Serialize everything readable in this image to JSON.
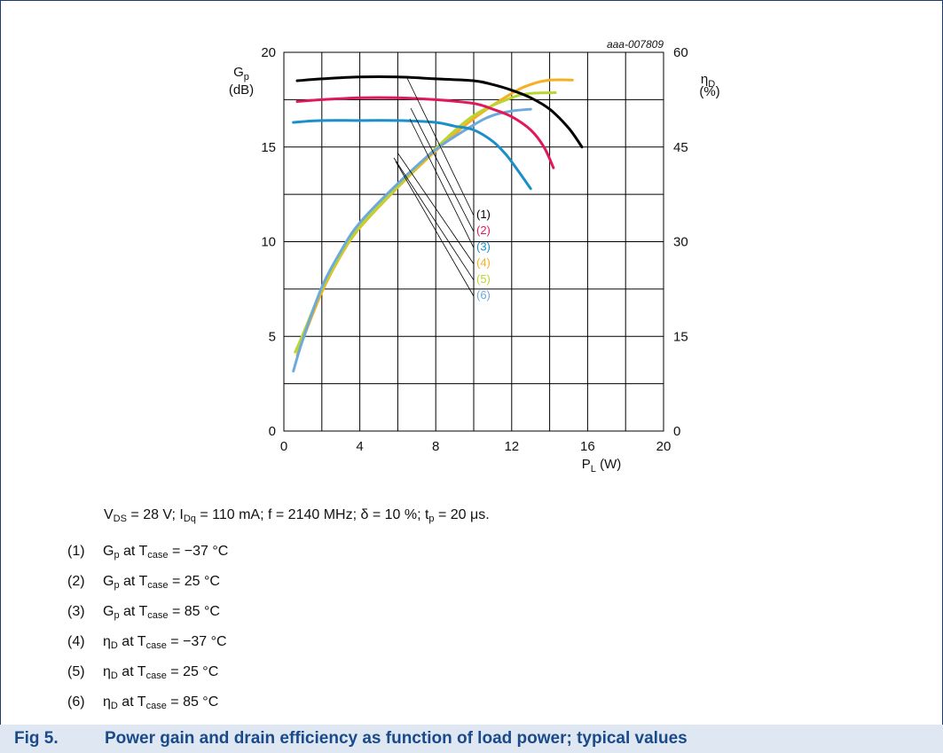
{
  "chart_data": {
    "type": "line",
    "code": "aaa-007809",
    "x_axis": {
      "label_main": "P",
      "label_sub": "L",
      "label_unit": " (W)",
      "range": [
        0,
        20
      ],
      "ticks": [
        "0",
        "4",
        "8",
        "12",
        "16",
        "20"
      ]
    },
    "y_left": {
      "label_main": "G",
      "label_sub": "p",
      "unit": "(dB)",
      "range": [
        0,
        20
      ],
      "ticks": [
        "0",
        "5",
        "10",
        "15",
        "20"
      ]
    },
    "y_right": {
      "label_main": "η",
      "label_sub": "D",
      "unit": "(%)",
      "range": [
        0,
        60
      ],
      "ticks": [
        "0",
        "15",
        "30",
        "45",
        "60"
      ]
    },
    "grid": true,
    "series": [
      {
        "name": "(1)",
        "axis": "left",
        "color": "#000000",
        "x": [
          0.7,
          2,
          4,
          6,
          8,
          10,
          11,
          12,
          13,
          14,
          15,
          15.7
        ],
        "y": [
          18.5,
          18.6,
          18.7,
          18.7,
          18.6,
          18.5,
          18.3,
          18.0,
          17.6,
          17.0,
          16.0,
          15.0
        ]
      },
      {
        "name": "(2)",
        "axis": "left",
        "color": "#e0195a",
        "x": [
          0.7,
          2,
          4,
          6,
          8,
          10,
          11,
          12,
          13,
          13.7,
          14.2
        ],
        "y": [
          17.4,
          17.5,
          17.6,
          17.6,
          17.5,
          17.3,
          17.0,
          16.6,
          15.9,
          15.0,
          13.9
        ]
      },
      {
        "name": "(3)",
        "axis": "left",
        "color": "#1a8fc9",
        "x": [
          0.5,
          2,
          4,
          6,
          8,
          9,
          10,
          11,
          11.7,
          12.3,
          13.0
        ],
        "y": [
          16.3,
          16.4,
          16.4,
          16.4,
          16.3,
          16.1,
          15.9,
          15.3,
          14.6,
          13.8,
          12.8
        ]
      },
      {
        "name": "(4)",
        "axis": "right",
        "color": "#f5b021",
        "x": [
          0.7,
          1,
          2,
          3,
          4,
          6,
          8,
          10,
          12,
          13,
          14,
          15.2
        ],
        "y": [
          12,
          14.5,
          22,
          27.8,
          32.2,
          38.6,
          44.4,
          49.5,
          53.5,
          54.9,
          55.6,
          55.6
        ]
      },
      {
        "name": "(5)",
        "axis": "right",
        "color": "#b9d532",
        "x": [
          0.6,
          1,
          2,
          3,
          4,
          6,
          8,
          10,
          12,
          13,
          14.3
        ],
        "y": [
          12.5,
          15.3,
          22.5,
          28,
          32.4,
          38.8,
          44.8,
          50,
          52.8,
          53.5,
          53.6
        ]
      },
      {
        "name": "(6)",
        "axis": "right",
        "color": "#6da9db",
        "x": [
          0.5,
          1,
          2,
          3,
          4,
          6,
          8,
          10,
          11,
          12,
          13
        ],
        "y": [
          9.5,
          14.5,
          22.8,
          28.5,
          33,
          39.2,
          44.6,
          48.5,
          50,
          50.7,
          51
        ]
      }
    ]
  },
  "conditions": [
    {
      "t": "V"
    },
    {
      "t": "DS",
      "sub": true
    },
    {
      "t": " = 28 V; I"
    },
    {
      "t": "Dq",
      "sub": true
    },
    {
      "t": " = 110 mA; f = 2140 MHz; δ = 10 %; t"
    },
    {
      "t": "p",
      "sub": true
    },
    {
      "t": " = 20 μs."
    }
  ],
  "legend": [
    {
      "num": "(1)",
      "sym": "G",
      "symsub": "p",
      "at": " at T",
      "tsub": "case",
      "val": " = −37 °C"
    },
    {
      "num": "(2)",
      "sym": "G",
      "symsub": "p",
      "at": " at T",
      "tsub": "case",
      "val": " = 25 °C"
    },
    {
      "num": "(3)",
      "sym": "G",
      "symsub": "p",
      "at": " at T",
      "tsub": "case",
      "val": " = 85 °C"
    },
    {
      "num": "(4)",
      "sym": "η",
      "symsub": "D",
      "at": " at T",
      "tsub": "case",
      "val": " = −37 °C"
    },
    {
      "num": "(5)",
      "sym": "η",
      "symsub": "D",
      "at": " at T",
      "tsub": "case",
      "val": " = 25 °C"
    },
    {
      "num": "(6)",
      "sym": "η",
      "symsub": "D",
      "at": " at T",
      "tsub": "case",
      "val": " = 85 °C"
    }
  ],
  "caption": {
    "fig": "Fig 5.",
    "title": "Power gain and drain efficiency as function of load power; typical values"
  }
}
